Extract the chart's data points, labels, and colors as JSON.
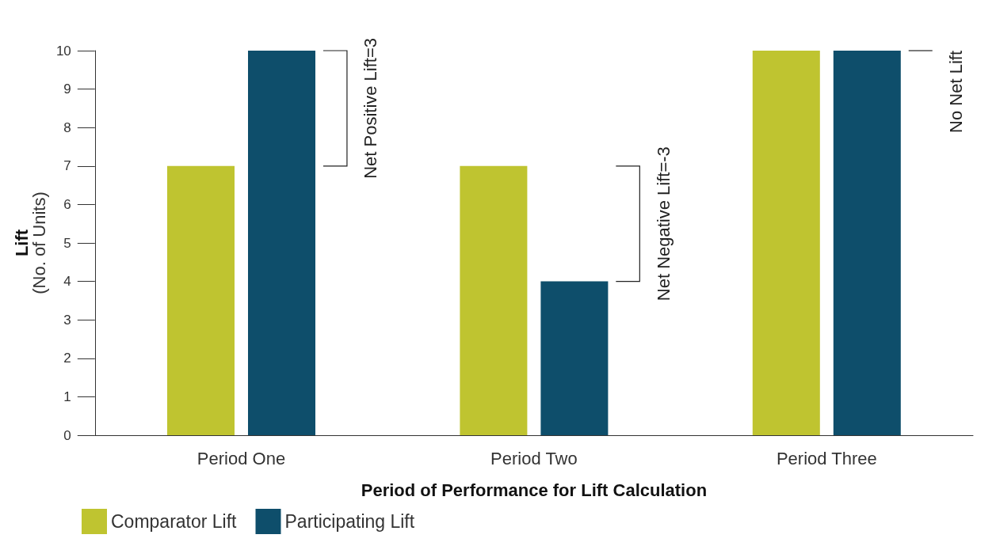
{
  "chart_data": {
    "type": "bar",
    "categories": [
      "Period One",
      "Period Two",
      "Period Three"
    ],
    "series": [
      {
        "name": "Comparator Lift",
        "color": "#bfc430",
        "values": [
          7,
          7,
          10
        ]
      },
      {
        "name": "Participating Lift",
        "color": "#0e4e6b",
        "values": [
          10,
          4,
          10
        ]
      }
    ],
    "xlabel": "Period of Performance for Lift Calculation",
    "ylabel": "Lift\n(No. of Units)",
    "ylim": [
      0,
      10
    ],
    "yticks": [
      0,
      1,
      2,
      3,
      4,
      5,
      6,
      7,
      8,
      9,
      10
    ],
    "grid": false,
    "legend": "bottom left",
    "annotations": [
      "Net Positive Lift=3",
      "Net Negative Lift=-3",
      "No Net Lift"
    ]
  }
}
